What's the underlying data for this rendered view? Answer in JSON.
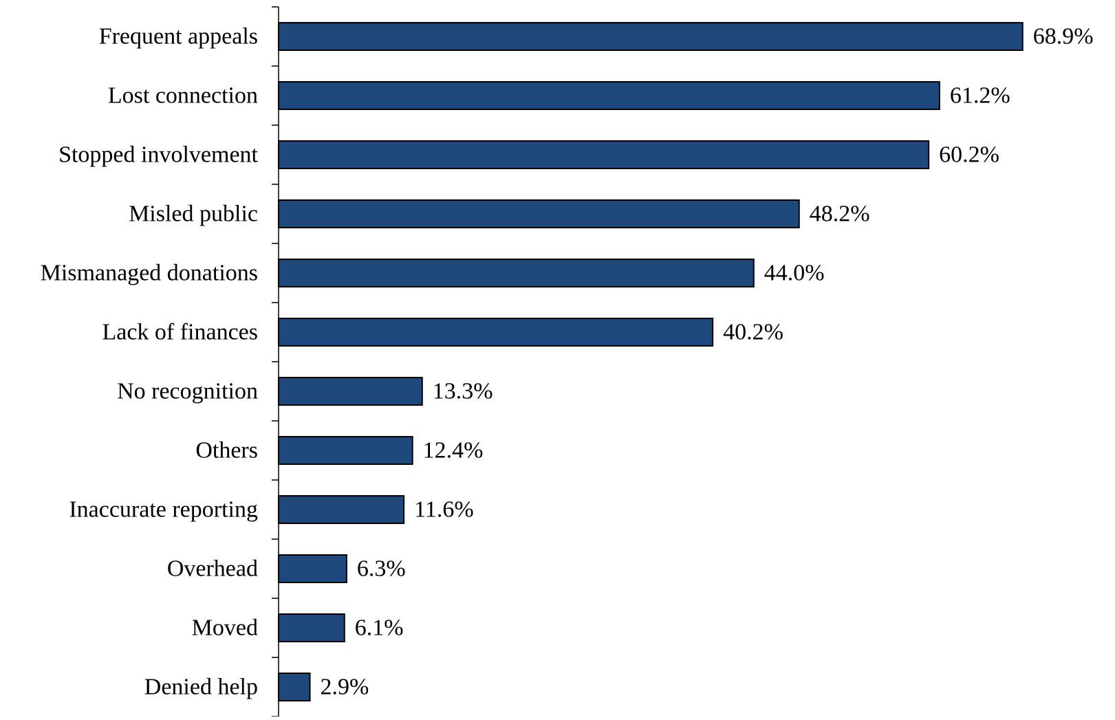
{
  "chart_data": {
    "type": "bar",
    "orientation": "horizontal",
    "title": "",
    "xlabel": "",
    "ylabel": "",
    "xlim": [
      0,
      70
    ],
    "grid": false,
    "legend": "none",
    "bar_color": "#1f497d",
    "bar_edge_color": "#000000",
    "value_suffix": "%",
    "categories": [
      "Frequent appeals",
      "Lost connection",
      "Stopped involvement",
      "Misled public",
      "Mismanaged donations",
      "Lack of finances",
      "No recognition",
      "Others",
      "Inaccurate reporting",
      "Overhead",
      "Moved",
      "Denied help"
    ],
    "values": [
      68.9,
      61.2,
      60.2,
      48.2,
      44.0,
      40.2,
      13.3,
      12.4,
      11.6,
      6.3,
      6.1,
      2.9
    ],
    "value_labels": [
      "68.9%",
      "61.2%",
      "60.2%",
      "48.2%",
      "44.0%",
      "40.2%",
      "13.3%",
      "12.4%",
      "11.6%",
      "6.3%",
      "6.1%",
      "2.9%"
    ]
  }
}
